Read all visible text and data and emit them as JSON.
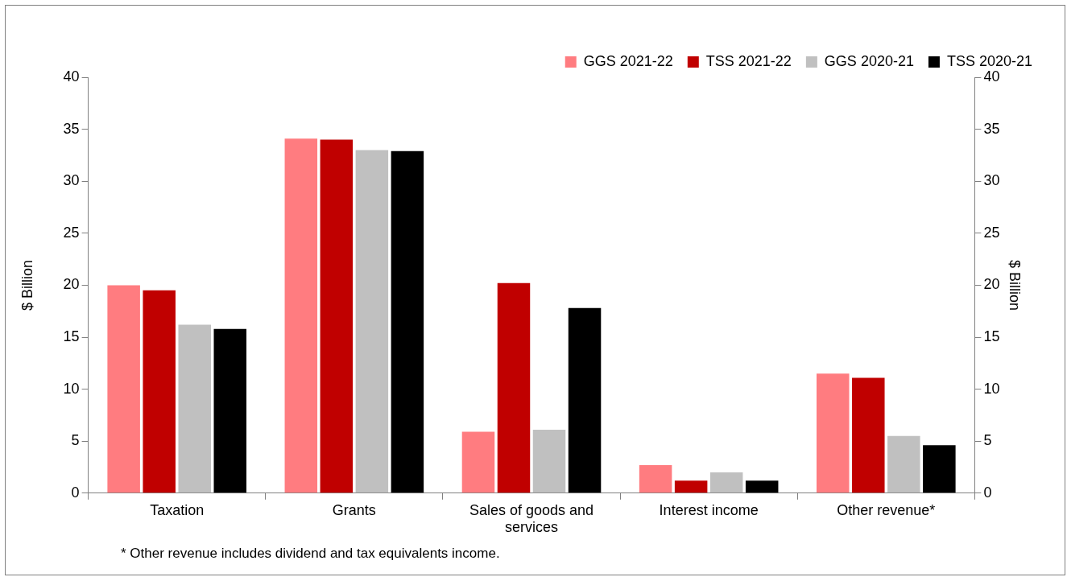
{
  "chart_data": {
    "type": "bar",
    "categories": [
      "Taxation",
      "Grants",
      "Sales of goods and services",
      "Interest income",
      "Other revenue*"
    ],
    "series": [
      {
        "name": "GGS 2021-22",
        "color": "#ff7c80",
        "values": [
          20.0,
          34.1,
          5.9,
          2.7,
          11.5
        ]
      },
      {
        "name": "TSS 2021-22",
        "color": "#c00000",
        "values": [
          19.5,
          34.0,
          20.2,
          1.2,
          11.1
        ]
      },
      {
        "name": "GGS 2020-21",
        "color": "#c0c0c0",
        "values": [
          16.2,
          33.0,
          6.1,
          2.0,
          5.5
        ]
      },
      {
        "name": "TSS 2020-21",
        "color": "#000000",
        "values": [
          15.8,
          32.9,
          17.8,
          1.2,
          4.6
        ]
      }
    ],
    "ylabel": "$ Billion",
    "y2label": "$ Billion",
    "ylim": [
      0,
      40
    ],
    "yticks": [
      0,
      5,
      10,
      15,
      20,
      25,
      30,
      35,
      40
    ],
    "y2lim": [
      0,
      40
    ],
    "y2ticks": [
      0,
      5,
      10,
      15,
      20,
      25,
      30,
      35,
      40
    ],
    "legend": "top right",
    "annotations": [
      "* Other revenue includes dividend and tax equivalents income."
    ]
  }
}
